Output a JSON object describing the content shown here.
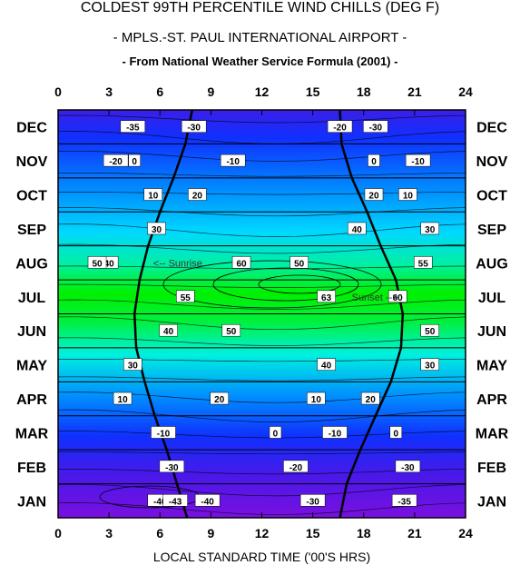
{
  "title_line1": "COLDEST 99TH PERCENTILE WIND CHILLS (DEG F)",
  "title_line2": "- MPLS.-ST. PAUL INTERNATIONAL AIRPORT -",
  "title_line3": "- From National Weather Service Formula  (2001) -",
  "chart_data": {
    "type": "heatmap",
    "xlabel": "LOCAL STANDARD TIME ('00'S HRS)",
    "x_ticks": [
      "0",
      "3",
      "6",
      "9",
      "12",
      "15",
      "18",
      "21",
      "24"
    ],
    "xlim": [
      0,
      24
    ],
    "months_top_to_bottom": [
      "DEC",
      "NOV",
      "OCT",
      "SEP",
      "AUG",
      "JUL",
      "JUN",
      "MAY",
      "APR",
      "MAR",
      "FEB",
      "JAN"
    ],
    "grid": true,
    "colors": {
      "cold": "#6a0de0",
      "cool": "#1e3cff",
      "mid": "#00e6ff",
      "warm": "#00f000",
      "contour": "#000000"
    },
    "contour_labels": [
      {
        "text": "-35",
        "hour": 4.4,
        "month": "DEC"
      },
      {
        "text": "-30",
        "hour": 8.0,
        "month": "DEC"
      },
      {
        "text": "-30",
        "hour": 18.7,
        "month": "DEC"
      },
      {
        "text": "-20",
        "hour": 3.4,
        "month": "NOV"
      },
      {
        "text": "-20",
        "hour": 16.6,
        "month": "DEC"
      },
      {
        "text": "-10",
        "hour": 10.3,
        "month": "NOV"
      },
      {
        "text": "0",
        "hour": 18.6,
        "month": "NOV"
      },
      {
        "text": "-10",
        "hour": 21.2,
        "month": "NOV"
      },
      {
        "text": "0",
        "hour": 4.5,
        "month": "NOV"
      },
      {
        "text": "10",
        "hour": 20.6,
        "month": "OCT"
      },
      {
        "text": "10",
        "hour": 5.6,
        "month": "OCT"
      },
      {
        "text": "20",
        "hour": 18.6,
        "month": "OCT"
      },
      {
        "text": "20",
        "hour": 8.2,
        "month": "OCT"
      },
      {
        "text": "30",
        "hour": 21.9,
        "month": "SEP"
      },
      {
        "text": "30",
        "hour": 5.8,
        "month": "SEP"
      },
      {
        "text": "40",
        "hour": 17.6,
        "month": "SEP"
      },
      {
        "text": "40",
        "hour": 3.0,
        "month": "AUG"
      },
      {
        "text": "50",
        "hour": 14.2,
        "month": "AUG"
      },
      {
        "text": "50",
        "hour": 2.3,
        "month": "AUG"
      },
      {
        "text": "60",
        "hour": 10.8,
        "month": "AUG"
      },
      {
        "text": "55",
        "hour": 21.5,
        "month": "AUG"
      },
      {
        "text": "63",
        "hour": 15.8,
        "month": "JUL"
      },
      {
        "text": "60",
        "hour": 20.0,
        "month": "JUL"
      },
      {
        "text": "55",
        "hour": 7.5,
        "month": "JUL"
      },
      {
        "text": "50",
        "hour": 10.2,
        "month": "JUN"
      },
      {
        "text": "50",
        "hour": 21.9,
        "month": "JUN"
      },
      {
        "text": "40",
        "hour": 6.5,
        "month": "JUN"
      },
      {
        "text": "40",
        "hour": 15.8,
        "month": "MAY"
      },
      {
        "text": "30",
        "hour": 4.4,
        "month": "MAY"
      },
      {
        "text": "30",
        "hour": 21.9,
        "month": "MAY"
      },
      {
        "text": "20",
        "hour": 9.5,
        "month": "APR"
      },
      {
        "text": "20",
        "hour": 18.4,
        "month": "APR"
      },
      {
        "text": "10",
        "hour": 3.8,
        "month": "APR"
      },
      {
        "text": "10",
        "hour": 15.2,
        "month": "APR"
      },
      {
        "text": "0",
        "hour": 12.8,
        "month": "MAR"
      },
      {
        "text": "0",
        "hour": 19.9,
        "month": "MAR"
      },
      {
        "text": "-10",
        "hour": 6.2,
        "month": "MAR"
      },
      {
        "text": "-10",
        "hour": 16.3,
        "month": "MAR"
      },
      {
        "text": "-20",
        "hour": 14.0,
        "month": "FEB"
      },
      {
        "text": "-30",
        "hour": 6.7,
        "month": "FEB"
      },
      {
        "text": "-30",
        "hour": 20.6,
        "month": "FEB"
      },
      {
        "text": "-35",
        "hour": 20.4,
        "month": "JAN"
      },
      {
        "text": "-40",
        "hour": 6.0,
        "month": "JAN"
      },
      {
        "text": "-43",
        "hour": 6.9,
        "month": "JAN"
      },
      {
        "text": "-40",
        "hour": 8.8,
        "month": "JAN"
      },
      {
        "text": "-30",
        "hour": 15.0,
        "month": "JAN"
      }
    ],
    "annotations": [
      {
        "text": "<-- Sunrise",
        "hour": 5.6,
        "month": "AUG"
      },
      {
        "text": "Sunset -->",
        "hour": 17.3,
        "month": "JUL"
      }
    ],
    "sunrise_hours_top_to_bottom": [
      7.9,
      7.5,
      6.8,
      6.0,
      5.3,
      4.8,
      4.5,
      4.6,
      5.1,
      5.7,
      6.4,
      7.0,
      7.6
    ],
    "sunset_hours_top_to_bottom": [
      16.6,
      16.7,
      17.3,
      18.2,
      19.0,
      19.9,
      20.3,
      20.2,
      19.6,
      18.7,
      17.8,
      17.0,
      16.6
    ]
  }
}
